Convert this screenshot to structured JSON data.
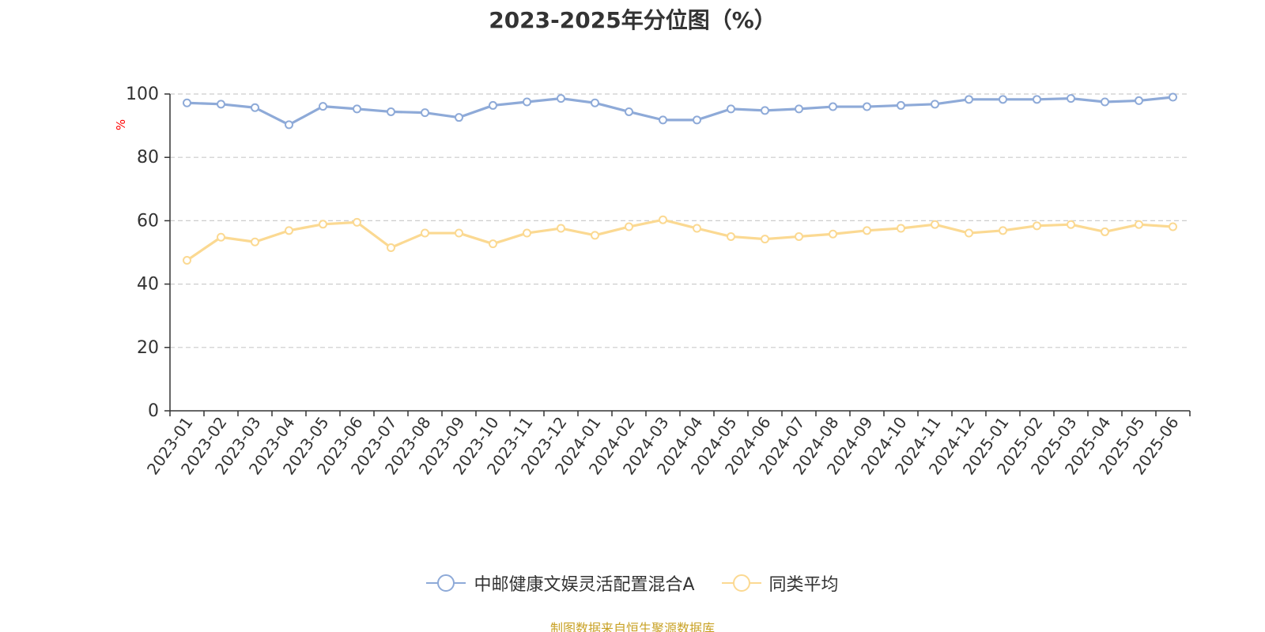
{
  "title": "2023-2025年分位图（%）",
  "source_note": "制图数据来自恒生聚源数据库",
  "colors": {
    "fund": "#8eaad8",
    "peer": "#fbd992",
    "axis": "#333333",
    "grid": "#cccccc",
    "ylabel": "#ff0000",
    "source": "#c9a227"
  },
  "chart_data": {
    "type": "line",
    "title": "2023-2025年分位图（%）",
    "xlabel": "",
    "ylabel": "%",
    "ylim": [
      0,
      100
    ],
    "yticks": [
      0,
      20,
      40,
      60,
      80,
      100
    ],
    "grid": true,
    "legend_position": "bottom-center",
    "categories": [
      "2023-01",
      "2023-02",
      "2023-03",
      "2023-04",
      "2023-05",
      "2023-06",
      "2023-07",
      "2023-08",
      "2023-09",
      "2023-10",
      "2023-11",
      "2023-12",
      "2024-01",
      "2024-02",
      "2024-03",
      "2024-04",
      "2024-05",
      "2024-06",
      "2024-07",
      "2024-08",
      "2024-09",
      "2024-10",
      "2024-11",
      "2024-12",
      "2025-01",
      "2025-02",
      "2025-03",
      "2025-04",
      "2025-05",
      "2025-06"
    ],
    "series": [
      {
        "name": "中邮健康文娱灵活配置混合A",
        "color": "#8eaad8",
        "values": [
          97.2,
          96.8,
          95.7,
          90.3,
          96.1,
          95.3,
          94.4,
          94.1,
          92.6,
          96.4,
          97.5,
          98.6,
          97.2,
          94.4,
          91.8,
          91.8,
          95.3,
          94.8,
          95.3,
          96.0,
          96.0,
          96.4,
          96.8,
          98.3,
          98.3,
          98.3,
          98.6,
          97.5,
          97.9,
          99.0
        ]
      },
      {
        "name": "同类平均",
        "color": "#fbd992",
        "values": [
          47.5,
          54.8,
          53.3,
          56.9,
          58.9,
          59.5,
          51.5,
          56.1,
          56.1,
          52.7,
          56.1,
          57.6,
          55.4,
          58.1,
          60.3,
          57.6,
          55.0,
          54.2,
          55.0,
          55.8,
          56.9,
          57.6,
          58.8,
          56.1,
          56.9,
          58.4,
          58.8,
          56.5,
          58.8,
          58.1
        ]
      }
    ]
  }
}
